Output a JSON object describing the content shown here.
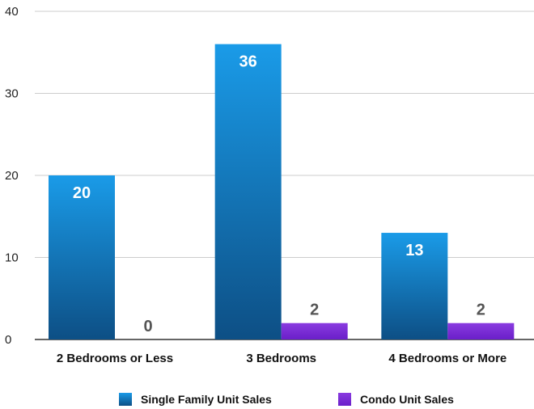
{
  "chart_data": {
    "type": "bar",
    "categories": [
      "2 Bedrooms or Less",
      "3 Bedrooms",
      "4 Bedrooms or More"
    ],
    "series": [
      {
        "name": "Single Family Unit Sales",
        "values": [
          20,
          36,
          13
        ],
        "color": "#1a9be8",
        "color_bottom": "#0d4f85",
        "label_color": "#ffffff"
      },
      {
        "name": "Condo Unit Sales",
        "values": [
          0,
          2,
          2
        ],
        "color": "#8a3be0",
        "color_bottom": "#6a1fc9",
        "label_color": "#555555"
      }
    ],
    "ylim": [
      0,
      40
    ],
    "yticks": [
      0,
      10,
      20,
      30,
      40
    ],
    "title": "",
    "xlabel": "",
    "ylabel": "",
    "grid": true,
    "legend_position": "bottom"
  }
}
